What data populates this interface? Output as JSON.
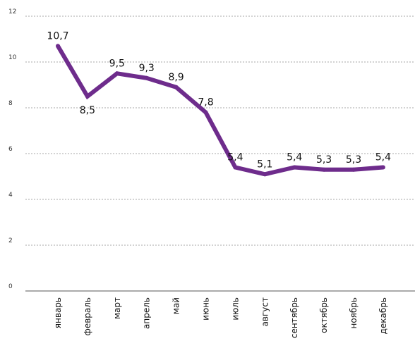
{
  "chart_data": {
    "type": "line",
    "title": "",
    "xlabel": "",
    "ylabel": "",
    "categories": [
      "январь",
      "февраль",
      "март",
      "апрель",
      "май",
      "июнь",
      "июль",
      "август",
      "сентябрь",
      "октябрь",
      "ноябрь",
      "декабрь"
    ],
    "series": [
      {
        "values": [
          10.7,
          8.5,
          9.5,
          9.3,
          8.9,
          7.8,
          5.4,
          5.1,
          5.4,
          5.3,
          5.3,
          5.4
        ],
        "labels": [
          "10,7",
          "8,5",
          "9,5",
          "9,3",
          "8,9",
          "7,8",
          "5,4",
          "5,1",
          "5,4",
          "5,3",
          "5,3",
          "5,4"
        ],
        "color": "#6e2c8c"
      }
    ],
    "ylim": [
      0,
      12
    ],
    "yticks": [
      0,
      2,
      4,
      6,
      8,
      10,
      12
    ],
    "grid": true,
    "legend": "none"
  }
}
